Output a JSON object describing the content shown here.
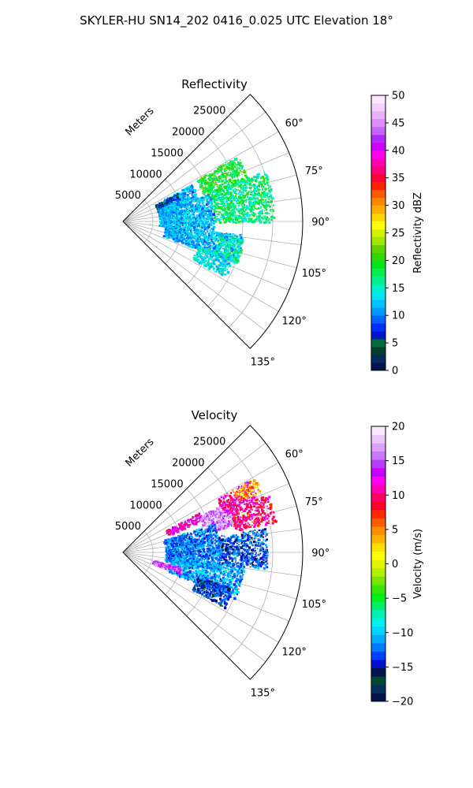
{
  "figure": {
    "title": "SKYLER-HU  SN14_202  0416_0.025 UTC Elevation 18°"
  },
  "chart_data": [
    {
      "type": "heatmap",
      "projection": "polar-sector",
      "title": "Reflectivity",
      "radial_label": "Meters",
      "radial_ticks": [
        5000,
        10000,
        15000,
        20000,
        25000
      ],
      "radial_tick_labels": [
        "5000",
        "10000",
        "15000",
        "20000",
        "25000"
      ],
      "radial_range": [
        0,
        30000
      ],
      "azimuth_range_deg": [
        45,
        135
      ],
      "azimuth_ticks": [
        60,
        75,
        90,
        105,
        120,
        135
      ],
      "azimuth_tick_labels": [
        "60°",
        "75°",
        "90°",
        "105°",
        "120°",
        "135°"
      ],
      "grid": true,
      "colorbar": {
        "label": "Reflectivity dBZ",
        "range": [
          0,
          50
        ],
        "ticks": [
          0,
          5,
          10,
          15,
          20,
          25,
          30,
          35,
          40,
          45,
          50
        ],
        "tick_labels": [
          "0",
          "5",
          "10",
          "15",
          "20",
          "25",
          "30",
          "35",
          "40",
          "45",
          "50"
        ],
        "placement": "right"
      },
      "echo_regions": [
        {
          "az_range": [
            60,
            72
          ],
          "r_range": [
            14000,
            22000
          ],
          "value": 19
        },
        {
          "az_range": [
            70,
            90
          ],
          "r_range": [
            15000,
            25000
          ],
          "value": 17
        },
        {
          "az_range": [
            61,
            72
          ],
          "r_range": [
            6000,
            13000
          ],
          "value": 12
        },
        {
          "az_range": [
            72,
            96
          ],
          "r_range": [
            6000,
            15000
          ],
          "value": 12
        },
        {
          "az_range": [
            96,
            110
          ],
          "r_range": [
            7000,
            20000
          ],
          "value": 12
        },
        {
          "az_range": [
            98,
            110
          ],
          "r_range": [
            16000,
            20000
          ],
          "value": 16
        },
        {
          "az_range": [
            108,
            118
          ],
          "r_range": [
            13000,
            19000
          ],
          "value": 14
        },
        {
          "az_range": [
            62,
            68
          ],
          "r_range": [
            6000,
            10000
          ],
          "value": 6
        }
      ]
    },
    {
      "type": "heatmap",
      "projection": "polar-sector",
      "title": "Velocity",
      "radial_label": "Meters",
      "radial_ticks": [
        5000,
        10000,
        15000,
        20000,
        25000
      ],
      "radial_tick_labels": [
        "5000",
        "10000",
        "15000",
        "20000",
        "25000"
      ],
      "radial_range": [
        0,
        30000
      ],
      "azimuth_range_deg": [
        45,
        135
      ],
      "azimuth_ticks": [
        60,
        75,
        90,
        105,
        120,
        135
      ],
      "azimuth_tick_labels": [
        "60°",
        "75°",
        "90°",
        "105°",
        "120°",
        "135°"
      ],
      "grid": true,
      "colorbar": {
        "label": "Velocity (m/s)",
        "range": [
          -20,
          20
        ],
        "ticks": [
          -20,
          -15,
          -10,
          -5,
          0,
          5,
          10,
          15,
          20
        ],
        "tick_labels": [
          "−20",
          "−15",
          "−10",
          "−5",
          "0",
          "5",
          "10",
          "15",
          "20"
        ],
        "placement": "right"
      },
      "echo_regions": [
        {
          "az_range": [
            62,
            68
          ],
          "r_range": [
            8000,
            14000
          ],
          "value": 12
        },
        {
          "az_range": [
            64,
            76
          ],
          "r_range": [
            14000,
            20000
          ],
          "value": 16
        },
        {
          "az_range": [
            60,
            68
          ],
          "r_range": [
            18000,
            24000
          ],
          "value": 11
        },
        {
          "az_range": [
            60,
            66
          ],
          "r_range": [
            21000,
            25000
          ],
          "value": 4
        },
        {
          "az_range": [
            68,
            78
          ],
          "r_range": [
            19000,
            26000
          ],
          "value": 10
        },
        {
          "az_range": [
            72,
            100
          ],
          "r_range": [
            7000,
            16000
          ],
          "value": -12
        },
        {
          "az_range": [
            80,
            96
          ],
          "r_range": [
            16000,
            24000
          ],
          "value": -13
        },
        {
          "az_range": [
            96,
            112
          ],
          "r_range": [
            8000,
            20000
          ],
          "value": -11
        },
        {
          "az_range": [
            104,
            110
          ],
          "r_range": [
            5000,
            10000
          ],
          "value": 15
        },
        {
          "az_range": [
            108,
            118
          ],
          "r_range": [
            13000,
            19000
          ],
          "value": -14
        }
      ]
    }
  ]
}
